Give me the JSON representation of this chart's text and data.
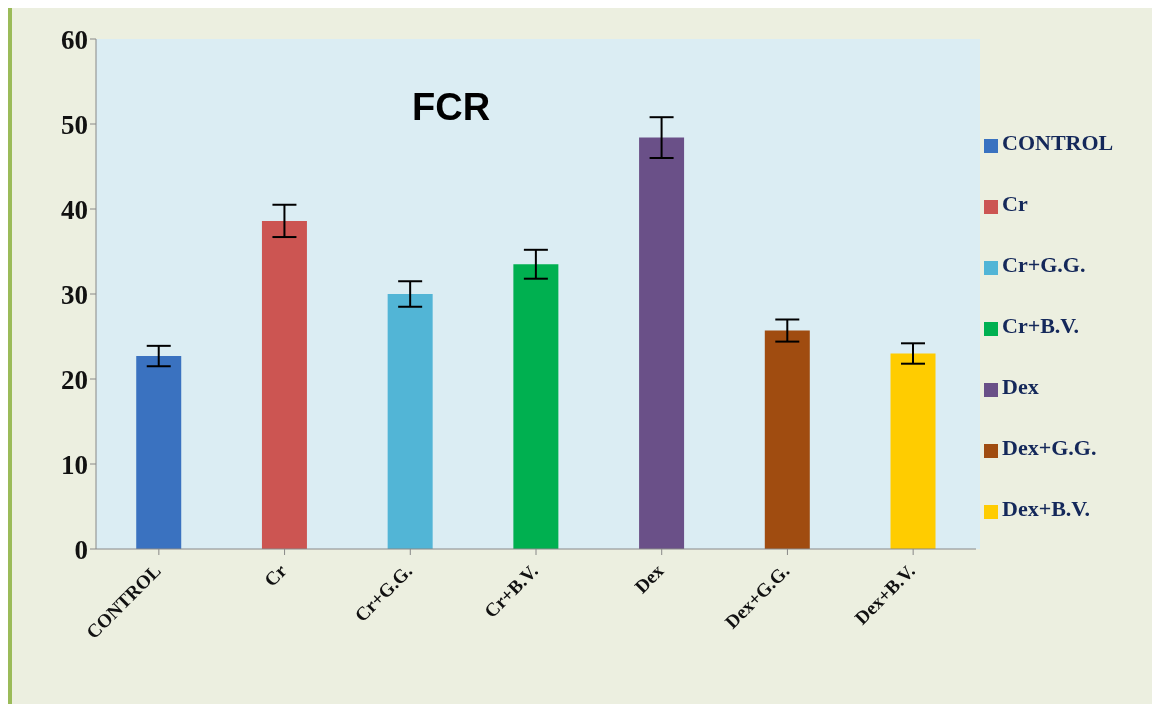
{
  "chart_data": {
    "type": "bar",
    "title": "FCR",
    "stacked": true,
    "categories": [
      "CONTROL",
      "Cr",
      "Cr+G.G.",
      "Cr+B.V.",
      "Dex",
      "Dex+G.G.",
      "Dex+B.V."
    ],
    "series": [
      {
        "name": "CONTROL",
        "color": "#3a72c0",
        "values": [
          22.7,
          null,
          null,
          null,
          null,
          null,
          null
        ],
        "errors": [
          1.2,
          null,
          null,
          null,
          null,
          null,
          null
        ]
      },
      {
        "name": "Cr",
        "color": "#cc5552",
        "values": [
          null,
          38.6,
          null,
          null,
          null,
          null,
          null
        ],
        "errors": [
          null,
          1.9,
          null,
          null,
          null,
          null,
          null
        ]
      },
      {
        "name": "Cr+G.G.",
        "color": "#52b5d6",
        "values": [
          null,
          null,
          30.0,
          null,
          null,
          null,
          null
        ],
        "errors": [
          null,
          null,
          1.5,
          null,
          null,
          null,
          null
        ]
      },
      {
        "name": "Cr+B.V.",
        "color": "#00b050",
        "values": [
          null,
          null,
          null,
          33.5,
          null,
          null,
          null
        ],
        "errors": [
          null,
          null,
          null,
          1.7,
          null,
          null,
          null
        ]
      },
      {
        "name": "Dex",
        "color": "#6a5088",
        "values": [
          null,
          null,
          null,
          null,
          48.4,
          null,
          null
        ],
        "errors": [
          null,
          null,
          null,
          null,
          2.4,
          null,
          null
        ]
      },
      {
        "name": "Dex+G.G.",
        "color": "#a04c10",
        "values": [
          null,
          null,
          null,
          null,
          null,
          25.7,
          null
        ],
        "errors": [
          null,
          null,
          null,
          null,
          null,
          1.3,
          null
        ]
      },
      {
        "name": "Dex+B.V.",
        "color": "#ffcc00",
        "values": [
          null,
          null,
          null,
          null,
          null,
          null,
          23.0
        ],
        "errors": [
          null,
          null,
          null,
          null,
          null,
          null,
          1.2
        ]
      }
    ],
    "ylim": [
      0,
      60
    ],
    "yticks": [
      0,
      10,
      20,
      30,
      40,
      50,
      60
    ],
    "grid": false,
    "legend": "right"
  }
}
